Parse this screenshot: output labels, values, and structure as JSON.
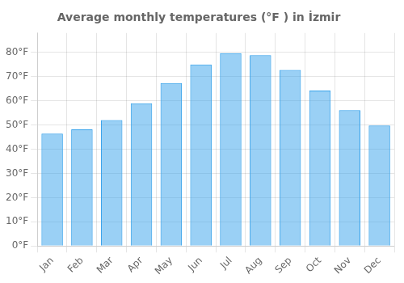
{
  "chart_data": {
    "type": "bar",
    "title": "Average monthly temperatures (°F ) in İzmir",
    "categories": [
      "Jan",
      "Feb",
      "Mar",
      "Apr",
      "May",
      "Jun",
      "Jul",
      "Aug",
      "Sep",
      "Oct",
      "Nov",
      "Dec"
    ],
    "values": [
      46.4,
      48.2,
      52.0,
      59.0,
      67.3,
      75.0,
      79.7,
      78.8,
      72.7,
      64.2,
      56.1,
      49.8
    ],
    "ylim": [
      0,
      88
    ],
    "yticks": [
      {
        "value": 0,
        "label": "0°F"
      },
      {
        "value": 10,
        "label": "10°F"
      },
      {
        "value": 20,
        "label": "20°F"
      },
      {
        "value": 30,
        "label": "30°F"
      },
      {
        "value": 40,
        "label": "40°F"
      },
      {
        "value": 50,
        "label": "50°F"
      },
      {
        "value": 60,
        "label": "60°F"
      },
      {
        "value": 70,
        "label": "70°F"
      },
      {
        "value": 80,
        "label": "80°F"
      }
    ],
    "grid": true
  }
}
